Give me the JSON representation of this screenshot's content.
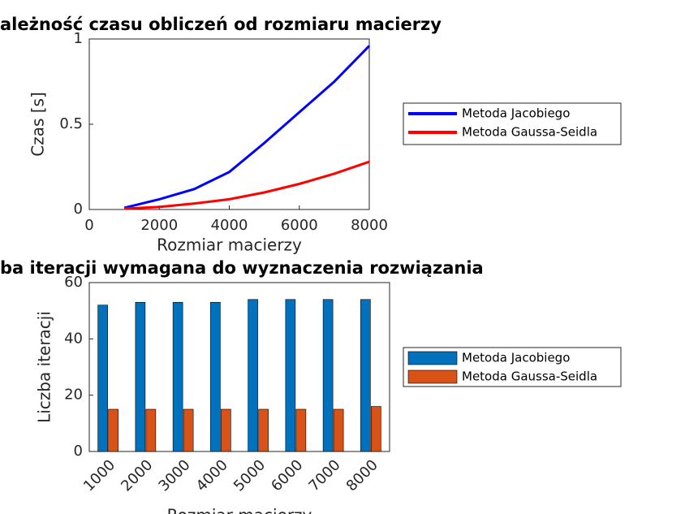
{
  "chart_data": [
    {
      "type": "line",
      "title": "ależność czasu obliczeń od rozmiaru macierzy",
      "xlabel": "Rozmiar macierzy",
      "ylabel": "Czas [s]",
      "x": [
        1000,
        2000,
        3000,
        4000,
        5000,
        6000,
        7000,
        8000
      ],
      "series": [
        {
          "name": "Metoda Jacobiego",
          "color": "#0000ff",
          "values": [
            0.01,
            0.06,
            0.12,
            0.22,
            0.39,
            0.57,
            0.75,
            0.96
          ]
        },
        {
          "name": "Metoda Gaussa-Seidla",
          "color": "#ff0000",
          "values": [
            0.005,
            0.015,
            0.035,
            0.06,
            0.1,
            0.15,
            0.21,
            0.28
          ]
        }
      ],
      "xlim": [
        0,
        8000
      ],
      "xticks": [
        0,
        2000,
        4000,
        6000,
        8000
      ],
      "ylim": [
        0,
        1
      ],
      "yticks": [
        0,
        0.5,
        1
      ],
      "grid": false,
      "legend": "right"
    },
    {
      "type": "bar",
      "title": "ba iteracji wymagana do wyznaczenia rozwiązania",
      "xlabel": "Rozmiar macierzy",
      "ylabel": "Liczba iteracji",
      "categories": [
        "1000",
        "2000",
        "3000",
        "4000",
        "5000",
        "6000",
        "7000",
        "8000"
      ],
      "series": [
        {
          "name": "Metoda Jacobiego",
          "color": "#0072bd",
          "values": [
            52,
            53,
            53,
            53,
            54,
            54,
            54,
            54
          ]
        },
        {
          "name": "Metoda Gaussa-Seidla",
          "color": "#d95319",
          "values": [
            15,
            15,
            15,
            15,
            15,
            15,
            15,
            16
          ]
        }
      ],
      "ylim": [
        0,
        60
      ],
      "yticks": [
        0,
        20,
        40,
        60
      ],
      "grid": false,
      "legend": "right"
    }
  ]
}
